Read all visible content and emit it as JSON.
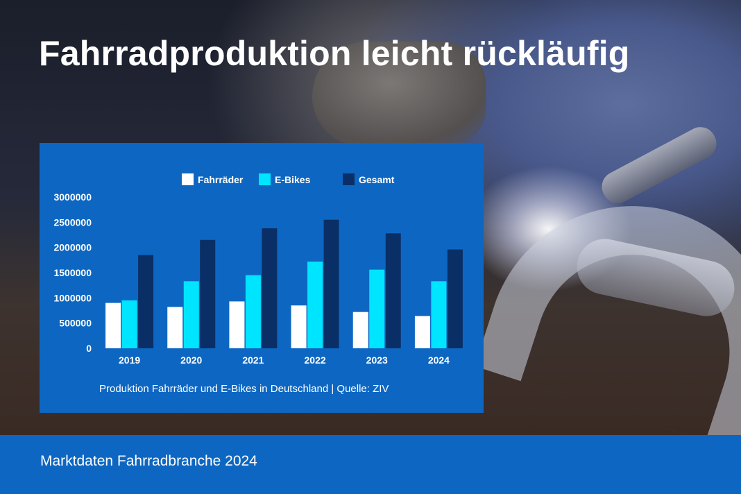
{
  "page": {
    "title": "Fahrradproduktion leicht rückläufig",
    "footer": "Marktdaten Fahrradbranche 2024"
  },
  "colors": {
    "panel": "#0d67c2",
    "fahrraeder": "#ffffff",
    "ebikes": "#00e5ff",
    "gesamt": "#0a2f66"
  },
  "chart_data": {
    "type": "bar",
    "title": "",
    "caption": "Produktion Fahrräder und E-Bikes in Deutschland | Quelle: ZIV",
    "categories": [
      "2019",
      "2020",
      "2021",
      "2022",
      "2023",
      "2024"
    ],
    "series": [
      {
        "name": "Fahrräder",
        "values": [
          900000,
          820000,
          930000,
          850000,
          720000,
          640000
        ]
      },
      {
        "name": "E-Bikes",
        "values": [
          950000,
          1330000,
          1450000,
          1720000,
          1560000,
          1330000
        ]
      },
      {
        "name": "Gesamt",
        "values": [
          1850000,
          2150000,
          2380000,
          2550000,
          2280000,
          1960000
        ]
      }
    ],
    "yticks": [
      "3000000",
      "2500000",
      "2000000",
      "1500000",
      "1000000",
      "500000",
      "0"
    ],
    "ylim": [
      0,
      3000000
    ],
    "xlabel": "",
    "ylabel": "",
    "legend_position": "top-center",
    "grid": false
  }
}
